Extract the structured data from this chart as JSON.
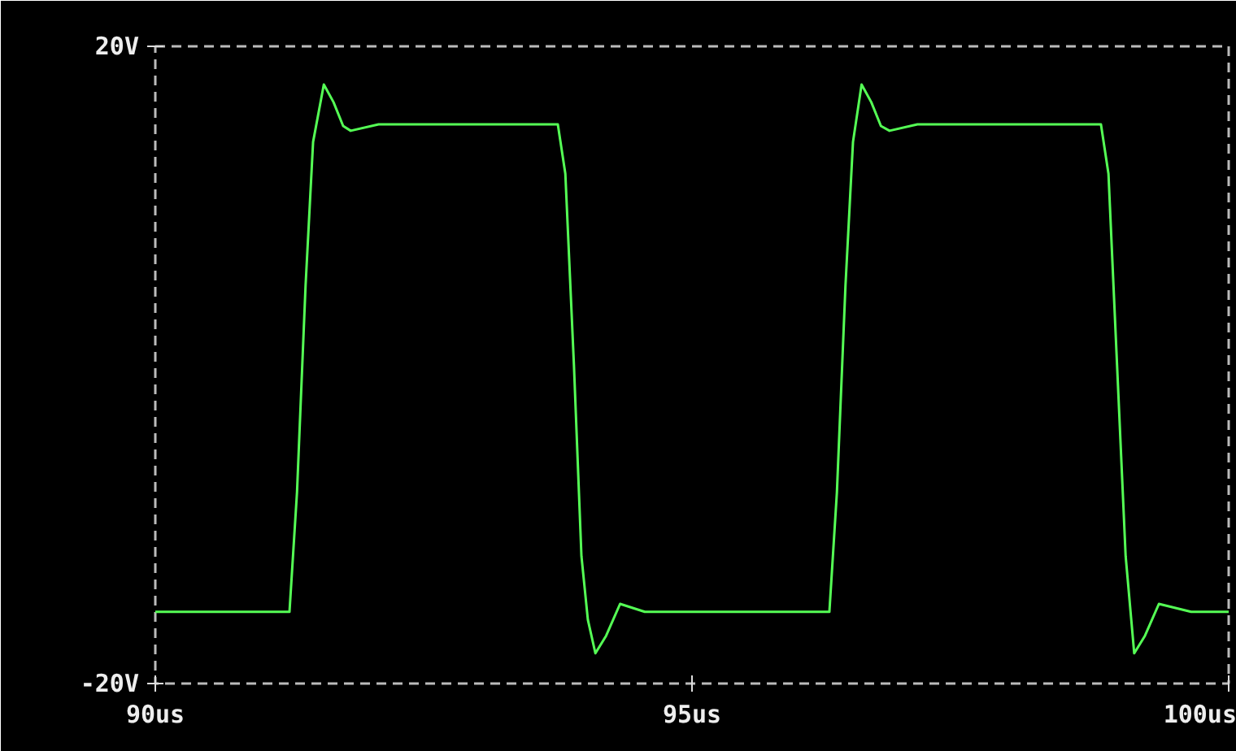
{
  "chart_data": {
    "type": "line",
    "x": [
      90,
      91.25,
      91.32,
      91.4,
      91.47,
      91.57,
      91.66,
      91.75,
      91.82,
      92.08,
      93.75,
      93.82,
      93.9,
      93.97,
      94.03,
      94.1,
      94.2,
      94.33,
      94.56,
      96.28,
      96.35,
      96.43,
      96.5,
      96.58,
      96.67,
      96.76,
      96.84,
      97.1,
      98.81,
      98.88,
      98.96,
      99.04,
      99.12,
      99.22,
      99.35,
      99.65,
      100
    ],
    "series": [
      {
        "color": "#55ff55",
        "values": [
          -15.5,
          -15.5,
          -8,
          5,
          14,
          17.6,
          16.5,
          15,
          14.7,
          15.1,
          15.1,
          12,
          0,
          -12,
          -16,
          -18.1,
          -17,
          -15,
          -15.5,
          -15.5,
          -8,
          5,
          14,
          17.6,
          16.5,
          15,
          14.7,
          15.1,
          15.1,
          12,
          0,
          -12,
          -18.1,
          -17,
          -15,
          -15.5,
          -15.5
        ]
      }
    ],
    "xlim": [
      90,
      100
    ],
    "ylim": [
      -20,
      20
    ],
    "xticks": [
      {
        "value": 90,
        "label": "90us"
      },
      {
        "value": 95,
        "label": "95us"
      },
      {
        "value": 100,
        "label": "100us"
      }
    ],
    "yticks": [
      {
        "value": -20,
        "label": "-20V"
      },
      {
        "value": 20,
        "label": "20V"
      }
    ],
    "grid": false,
    "line_style": "solid"
  }
}
